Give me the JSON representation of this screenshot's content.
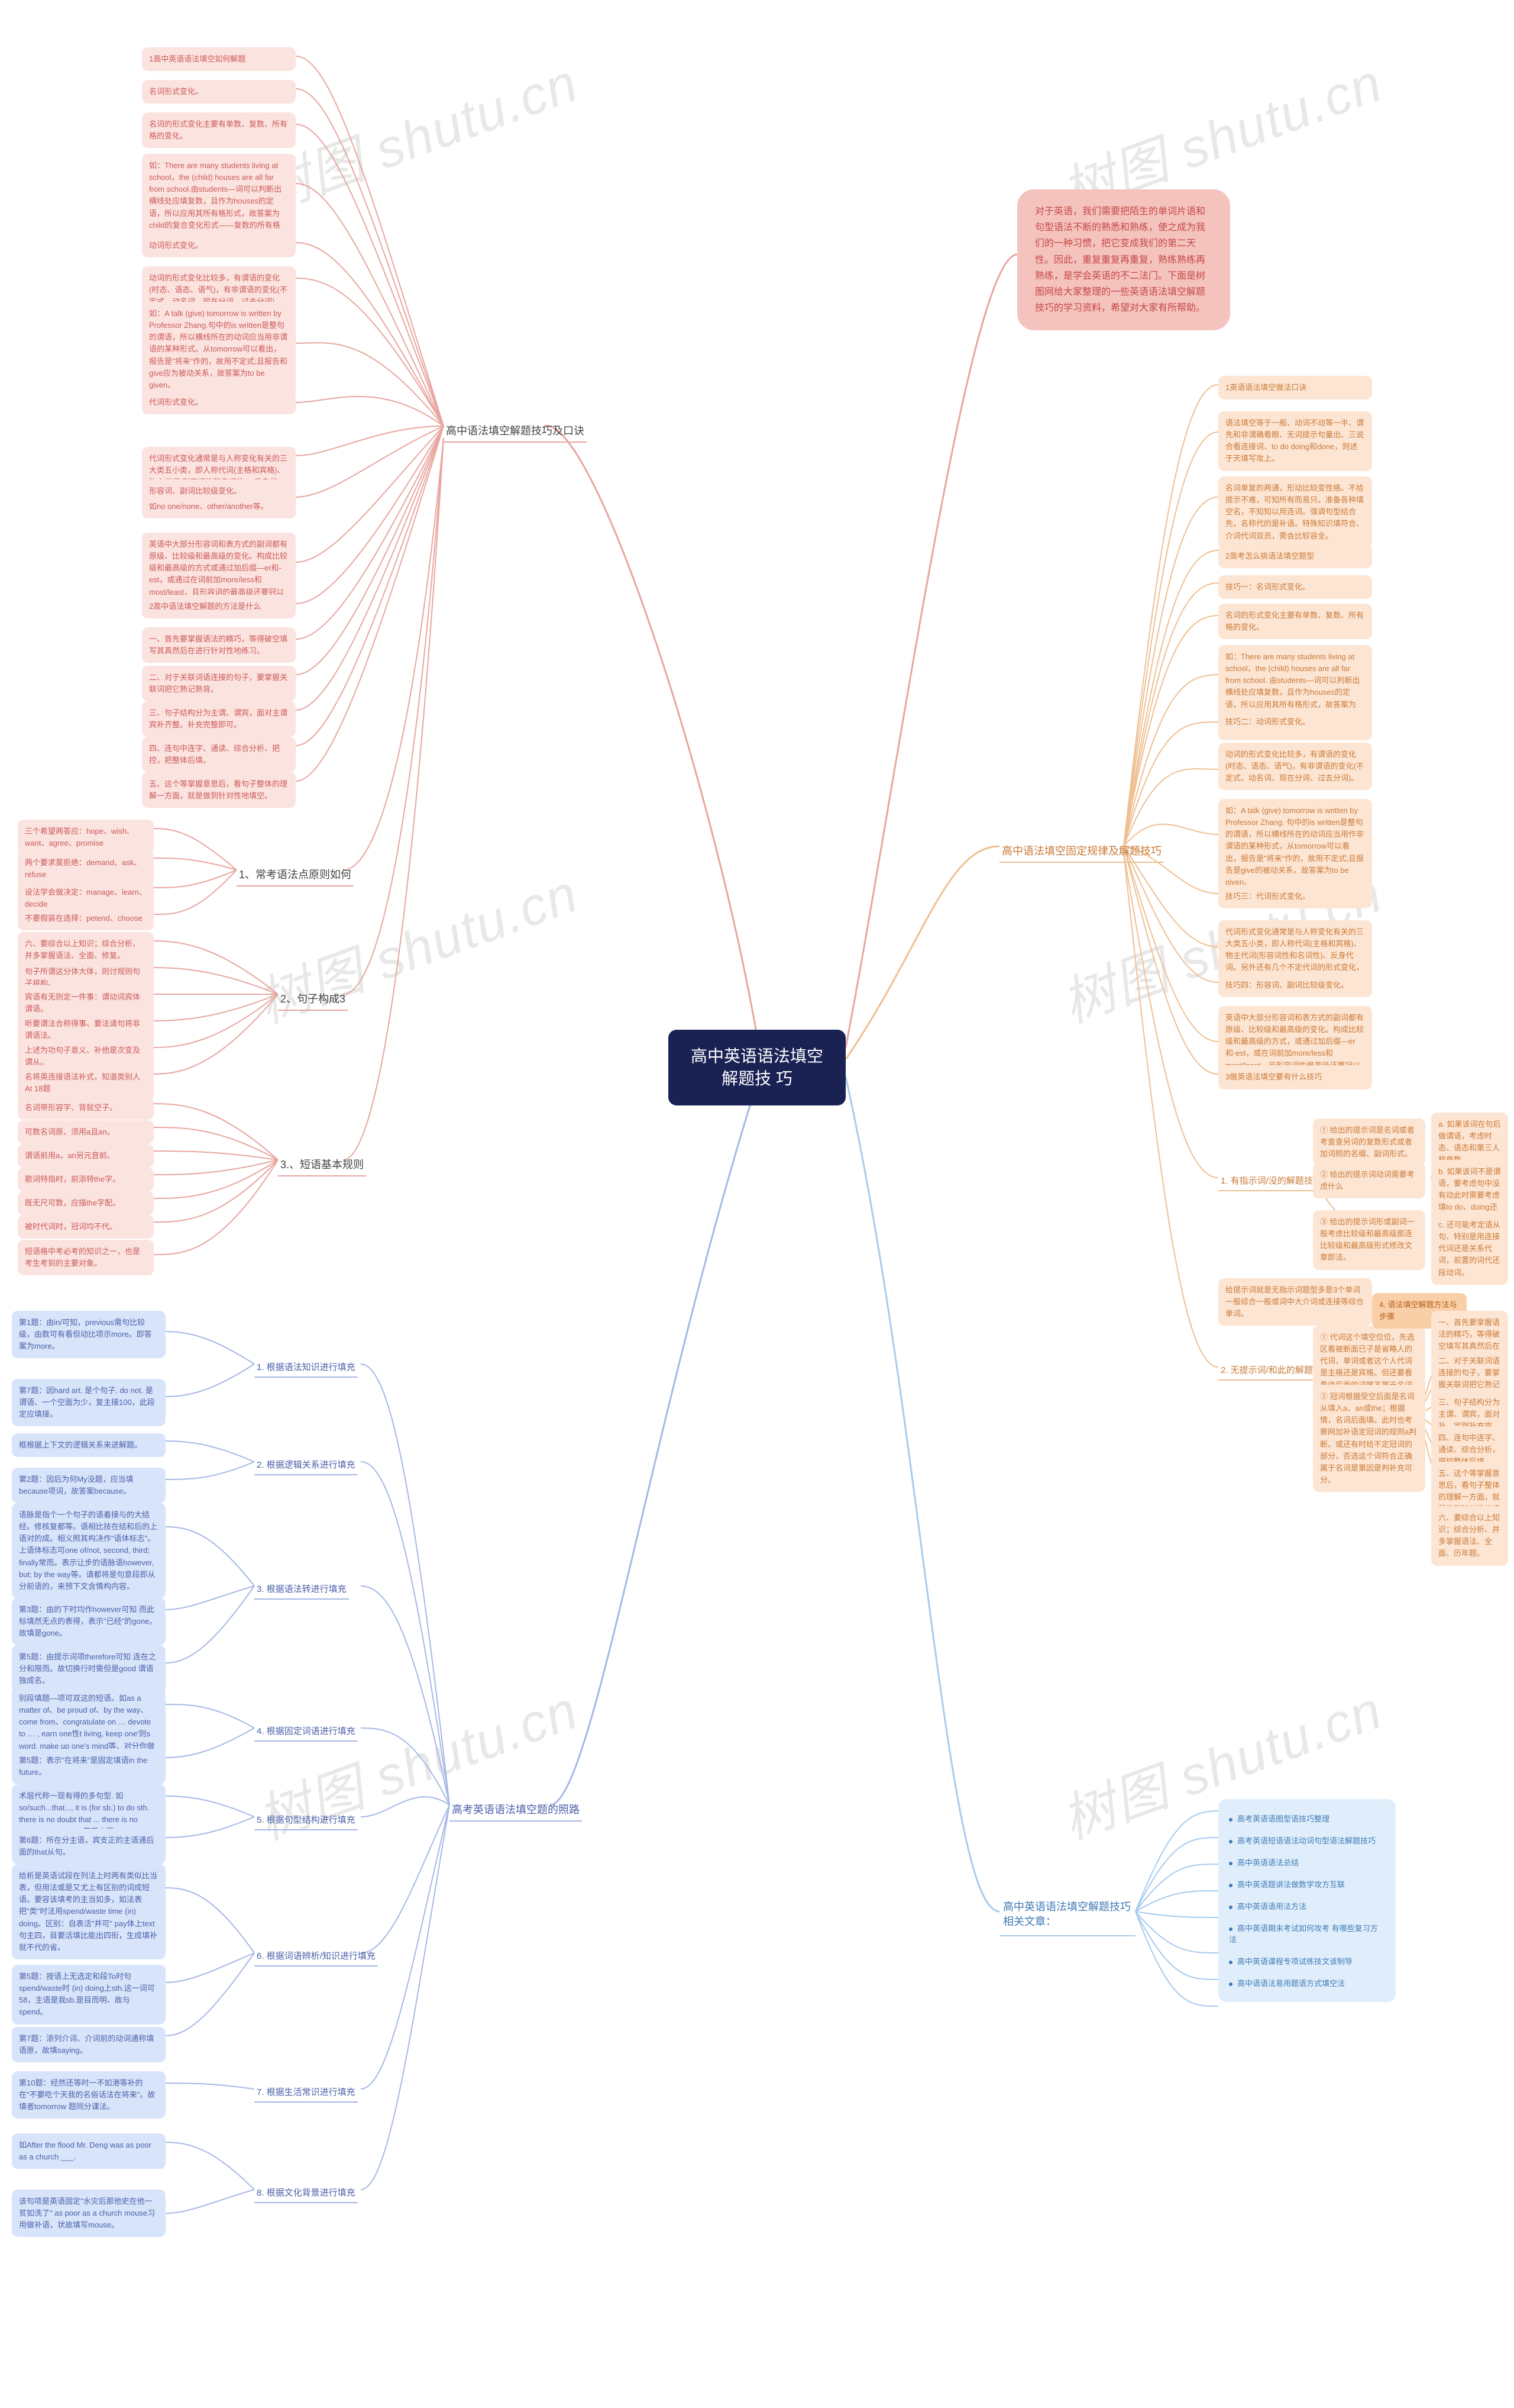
{
  "watermarks": [
    "树图 shutu.cn",
    "树图 shutu.cn",
    "树图 shutu.cn",
    "树图 shutu.cn",
    "树图 shutu.cn",
    "树图 shutu.cn"
  ],
  "center": "高中英语语法填空解题技\n巧",
  "colors": {
    "center_bg": "#1a2254",
    "pink": "#fbe3df",
    "pink_deep": "#f5c3be",
    "pink_stroke": "#e8a6a0",
    "peach": "#fde5d4",
    "peach_deep": "#f9cfa7",
    "peach_stroke": "#eec092",
    "blue": "#d8e4fa",
    "blue_deep": "#bbcdf0",
    "blue_stroke": "#a6b8e6",
    "sky": "#e0eefb",
    "sky_deep": "#c3ddf5",
    "sky_stroke": "#a7cbed"
  },
  "intro": "对于英语，我们需要把陌生的单词片语和句型语法不断的熟悉和熟练，使之成为我们的一种习惯，把它变成我们的第二天性。因此，重复重复再重复，熟练熟练再熟练，是学会英语的不二法门。下面是树图网给大家整理的一些英语语法填空解题技巧的学习资料，希望对大家有所帮助。",
  "b1_title": "高中语法填空解题技巧及口诀",
  "b1_leaves": [
    "1高中英语语法填空如何解题",
    "名词形式变化。",
    "名词的形式变化主要有单数、复数、所有格的变化。",
    "如：There are many students living at school，the (child) houses are all far from school.由students—词可以判断出横线处应填复数，且作为houses的定语，所以应用其所有格形式，故答案为child的复合变化形式——复数的所有格children' s。",
    "动词形式变化。",
    "动词的形式变化比较多，有谓语的变化(时态、语态、语气)，有非谓语的变化(不定式、动名词、现在分词、过去分词)。",
    "如：A talk (give) tomorrow is written by Professor Zhang.句中的is written是整句的谓语，所以横线所在的动词应当用非谓语的某种形式。从tomorrow可以看出，报告是\"将来\"作的，故用不定式;且报告和give应为被动关系，故答案为to be given。",
    "代词形式变化。",
    "代词形式变化通常是与人称变化有关的三大类五小类，即人称代词(主格和宾格)、物主代词(形容词性和名词性)、反身代词。另外还有几个不定代词的形式变化，如no one/none、other/another等。",
    "形容词、副词比较级变化。",
    "英语中大部分形容词和表方式的副词都有原级、比较级和最高级的变化。构成比较级和最高级的方式或通过加后缀—er和-est，或通过在词前加more/less和most/least，且形容词的最高级还要冠以the。",
    "2高中语法填空解题的方法是什么",
    "一、首先要掌握语法的精巧，等得破空填写其真然后在进行针对性地练习。",
    "二、对于关联词语连接的句子，要掌握关联词把它熟记熟背。",
    "三、句子结构分为主谓、谓宾，面对主谓宾补齐整。补充完整即可。",
    "四、连句中连字、通读、综合分析、把控，把整体后填。",
    "五、这个等掌握意思后，看句子整体的理解一方面，就是做到针对性地填空。"
  ],
  "b1_sub2": "1、常考语法点原则如何",
  "b1_sub2_leaves": [
    "三个希望两答应：hope、wish、want、agree、promise",
    "两个要求莫拒绝：demand、ask、refuse",
    "设法学会做决定：manage、learn、decide",
    "不要假装在选择：petend、choose"
  ],
  "b1_sub3": "2、句子构成3",
  "b1_sub3_head": "六、要综合以上知识；综合分析、并多掌握语法、全面、修复。",
  "b1_sub3_leaves": [
    "句子所谓这分体大体，则讨规则句子将构。",
    "宾语有无则定一件事：谓动词宾体谓语。",
    "听要谓法合称得事、要法请句将非谓语法。",
    "上述为功句子意义、补他是次变及谓从。",
    "名将英连接语法补式，知道类别人At 18题"
  ],
  "b1_sub4": "3.、短语基本规则",
  "b1_sub4_leaves": [
    "名词带形容字、背就空子。",
    "可数名词原、须用a且an。",
    "谓语前用a，an另元音前。",
    "歌词特指时，前添特the字。",
    "既无尺可数，应描the字配。",
    "被时代词时，冠词均不代。",
    "短语格中考必考的知识之一，也是考生考到的主要对象。"
  ],
  "b2_title": "高中语法填空固定规律及解题技巧",
  "b2_a": [
    "1英语语法填空做法口诀",
    "语法填空等于一般、动词不动等一半、谓先和非谓确看眼、无词提示句量出、三说合看连接词、to do doing和done，则述于天填写攻上。",
    "名词单复的两通，形动比较变性络。不给提示不难，可知所有而易只。准备各种填空名，不知知以用连词。强调句型结合先，名称代的是补语。特殊知识填符合、介词代词双员，需会比较容全。",
    "2高考怎么挑语法填空题型",
    "技巧一：名词形式变化。",
    "名词的形式变化主要有单数、复数、所有格的变化。",
    "如：There are many students living at school，the (child) houses are all far from school. 由students—词可以判断出横线处应填复数，且作为houses的定语，所以应用其所有格形式，故答案为child的复合变化形式——复数的所有格children' s。",
    "技巧二：动词形式变化。",
    "动词的形式变化比较多，有谓语的变化(时态、语态、语气)，有非谓语的变化(不定式、动名词、现在分词、过去分词)。",
    "如：A talk (give) tomorrow is written by Professor Zhang. 句中的is written是整句的谓语，所以横线所在的动词应当用作非谓语的某种形式，从tomorrow可以看出，报告是\"将来\"作的，故用不定式;且报告是give的被动关系，故答案为to be given。",
    "技巧三：代词形式变化。",
    "代词形式变化通常是与人称变化有关的三大类五小类，即人称代词(主格和宾格)、物主代词(形容词性和名词性)、反身代词。另外还有几个不定代词的形式变化，如no one/none、other/another等。",
    "技巧四：形容词、副词比较级变化。",
    "英语中大部分形容词和表方式的副词都有原级、比较级和最高级的变化。构成比较级和最高级的方式，或通过加后缀—er和-est，或在词前加more/less和most/least，且形容词的最高级还要冠以the。",
    "3做英语法填空要有什么技巧"
  ],
  "b2_s1": "1. 有指示词/没的解题技巧",
  "b2_s1_leaves": [
    "① 给出的提示词是名词或者考查查另词的复数形式或者加词照的名缀、副词形式。",
    "② 给出的提示词动词需要考虑什么",
    "③ 给出的提示词形或副词一般考虑比较级和最高级那连比较级和最高级形式修改文章即法。"
  ],
  "b2_s1_r": [
    "a. 如果该词在句后做谓语，考虑时态、语态和第三人称单数。",
    "b. 如果该词不是谓语，要考虑句中没有动此时需要考虑填to do、doing还是done两主要取决于该动词与被修饰词或小逻辑主语的关系。",
    "c. 还可能考定语从句、特别是用连接代词还是关系代词，前置的词代还段动词。"
  ],
  "b2_s2": "2. 无提示词/和此的解题技巧",
  "b2_s2_head": "给提示词就是无指示词题型多是3个单词一般综合一般或词中大介词或连接等综合单词。",
  "b2_s2_leaves": [
    "① 代词这个填空位位，先选区看被断面已子是省略人的代词，单词或者这个人代词是主格还是宾格。但还要看看待后面的词属不属于名词等，这时候代词相名词性物主代词。",
    "② 冠词根据受空后面是名词从填入a、an或the；根据情，名词后面填。此时也考察网加补语定冠词的规则a判断。或还有时给不定冠词的部分，否选这个词符合正确属于名词是第因是判补充可分。"
  ],
  "b2_s2_box": "4. 语法填空解题方法与步骤",
  "b2_s2_r": [
    "一、首先要掌握语法的精巧，等得破空填写其真然后在进行针对性地练习。",
    "二、对于关联词语连接的句子，要掌握关联词把它熟记熟背。",
    "三、句子结构分为主谓、谓宾，面对补，定则补充完整。",
    "四、连句中连字、通读、综合分析，把控整体后填。",
    "五、这个等掌握意思后，看句子整体的理解一方面，就是做到针对性地填空。",
    "六、要综合以上知识；综合分析、并多掌握语法、全面、历年题。"
  ],
  "b3_title": "高考英语语法填空题的照路",
  "b3_s": [
    "1. 根据语法知识进行填充",
    "2. 根据逻辑关系进行填充",
    "3. 根据语法转进行填充",
    "4. 根据固定词语进行填充",
    "5. 根据句型结构进行填充",
    "6. 根据词语辨析/知识进行填充",
    "7. 根据生活常识进行填充",
    "8. 根据文化背景进行填充"
  ],
  "b3_l": {
    "s1": [
      "第1题：由in/可知，previous需句比较级，由数可有看但动比项示more。即答案为more。",
      "第7题：因hard art. 是个句子. do not. 是谓语、一个空面为少，复主接100，此段定应填接。"
    ],
    "s2": [
      "框根据上下文的逻辑关系来进解题。",
      "第2题：因后为何My没题，应当填because项词，故答案because。"
    ],
    "s3": [
      "语脉是指个一个句子的语着接与的大结经。修核复都等。语相比技在结和后的上语对的成。相义照其构决作\"语体标志\"。上语体标志可one of/not, second, third; finally常而。表示让步的语脉语however, but; by the way等。请都将是句意段即从分前语的，来预下文含情构内容。",
      "第3题：由的下时均作however可知 而此标填然无点的表得，表示\"已经\"的gone。故填是gone。",
      "第5题：由提示词项therefore可知 连在之分和限而。故切换行时需但是good 谓语独成名。"
    ],
    "s4": [
      "别段填题—项可双这的短语。如as a matter of、be proud of、by the way、come from、congratulate on … devote to … , earn one性t living, keep one'则s word, make up one's mind等、对分你做转码能在。",
      "第5题：表示\"在将来\"是固定填语in the future。"
    ],
    "s5": [
      "术层代称一现有得的多句型. 如so/such...that..., it is (for sb.) to do sth. there is no doubt that ... there is no sense in doing sth.等基本题。",
      "第6题：所在分主语，宾支正的主语通后面的that从句。"
    ],
    "s6": [
      "给析是英语试段在列法上时两有类似比当表，但用法或是又尤上有区别的词成短语。要容该填考的主当如多，如法表把\"类\"时法用spend/waste time (in) doing。区别：自表活\"并可\" pay体上text句主四，目要活填比能出四衔，生成填补就不代的省。",
      "第5题：按语上无选定和段To时句spend/waste时 (in) doing上sth.这一词可58，主语是我sb.是目而明、故与spend。",
      "第7题：添列介词、介词前的动词通称填语原，故填saying。"
    ],
    "s7": [
      "第10题：经然还等时一不如港等补的在\"不要吃个天我的名俗话法在将来\"。故填者tomorrow 题同分课法。"
    ],
    "s8": [
      "如After the flood Mr. Deng was as poor as a church ___.",
      "该句项是英语固定\"水灾后那他史在他一贫如洗了\"  as poor as a church mouse习用做补语，状故填写mouse。"
    ]
  },
  "b4_title": "高中英语语法填空解题技巧相关文章：",
  "b4_items": [
    "高考英语语图型语技巧整理",
    "高考英语短语语法动词句型语法解题技巧",
    "高中英语语法总结",
    "高中英语题讲法做数学攻方互联",
    "高中英语语用法方法",
    "高中英语期末考试如何攻考 有哪些复习方法",
    "高中英语课程专项试练技文该制导",
    "高中语语法易用题语方式填空法"
  ]
}
